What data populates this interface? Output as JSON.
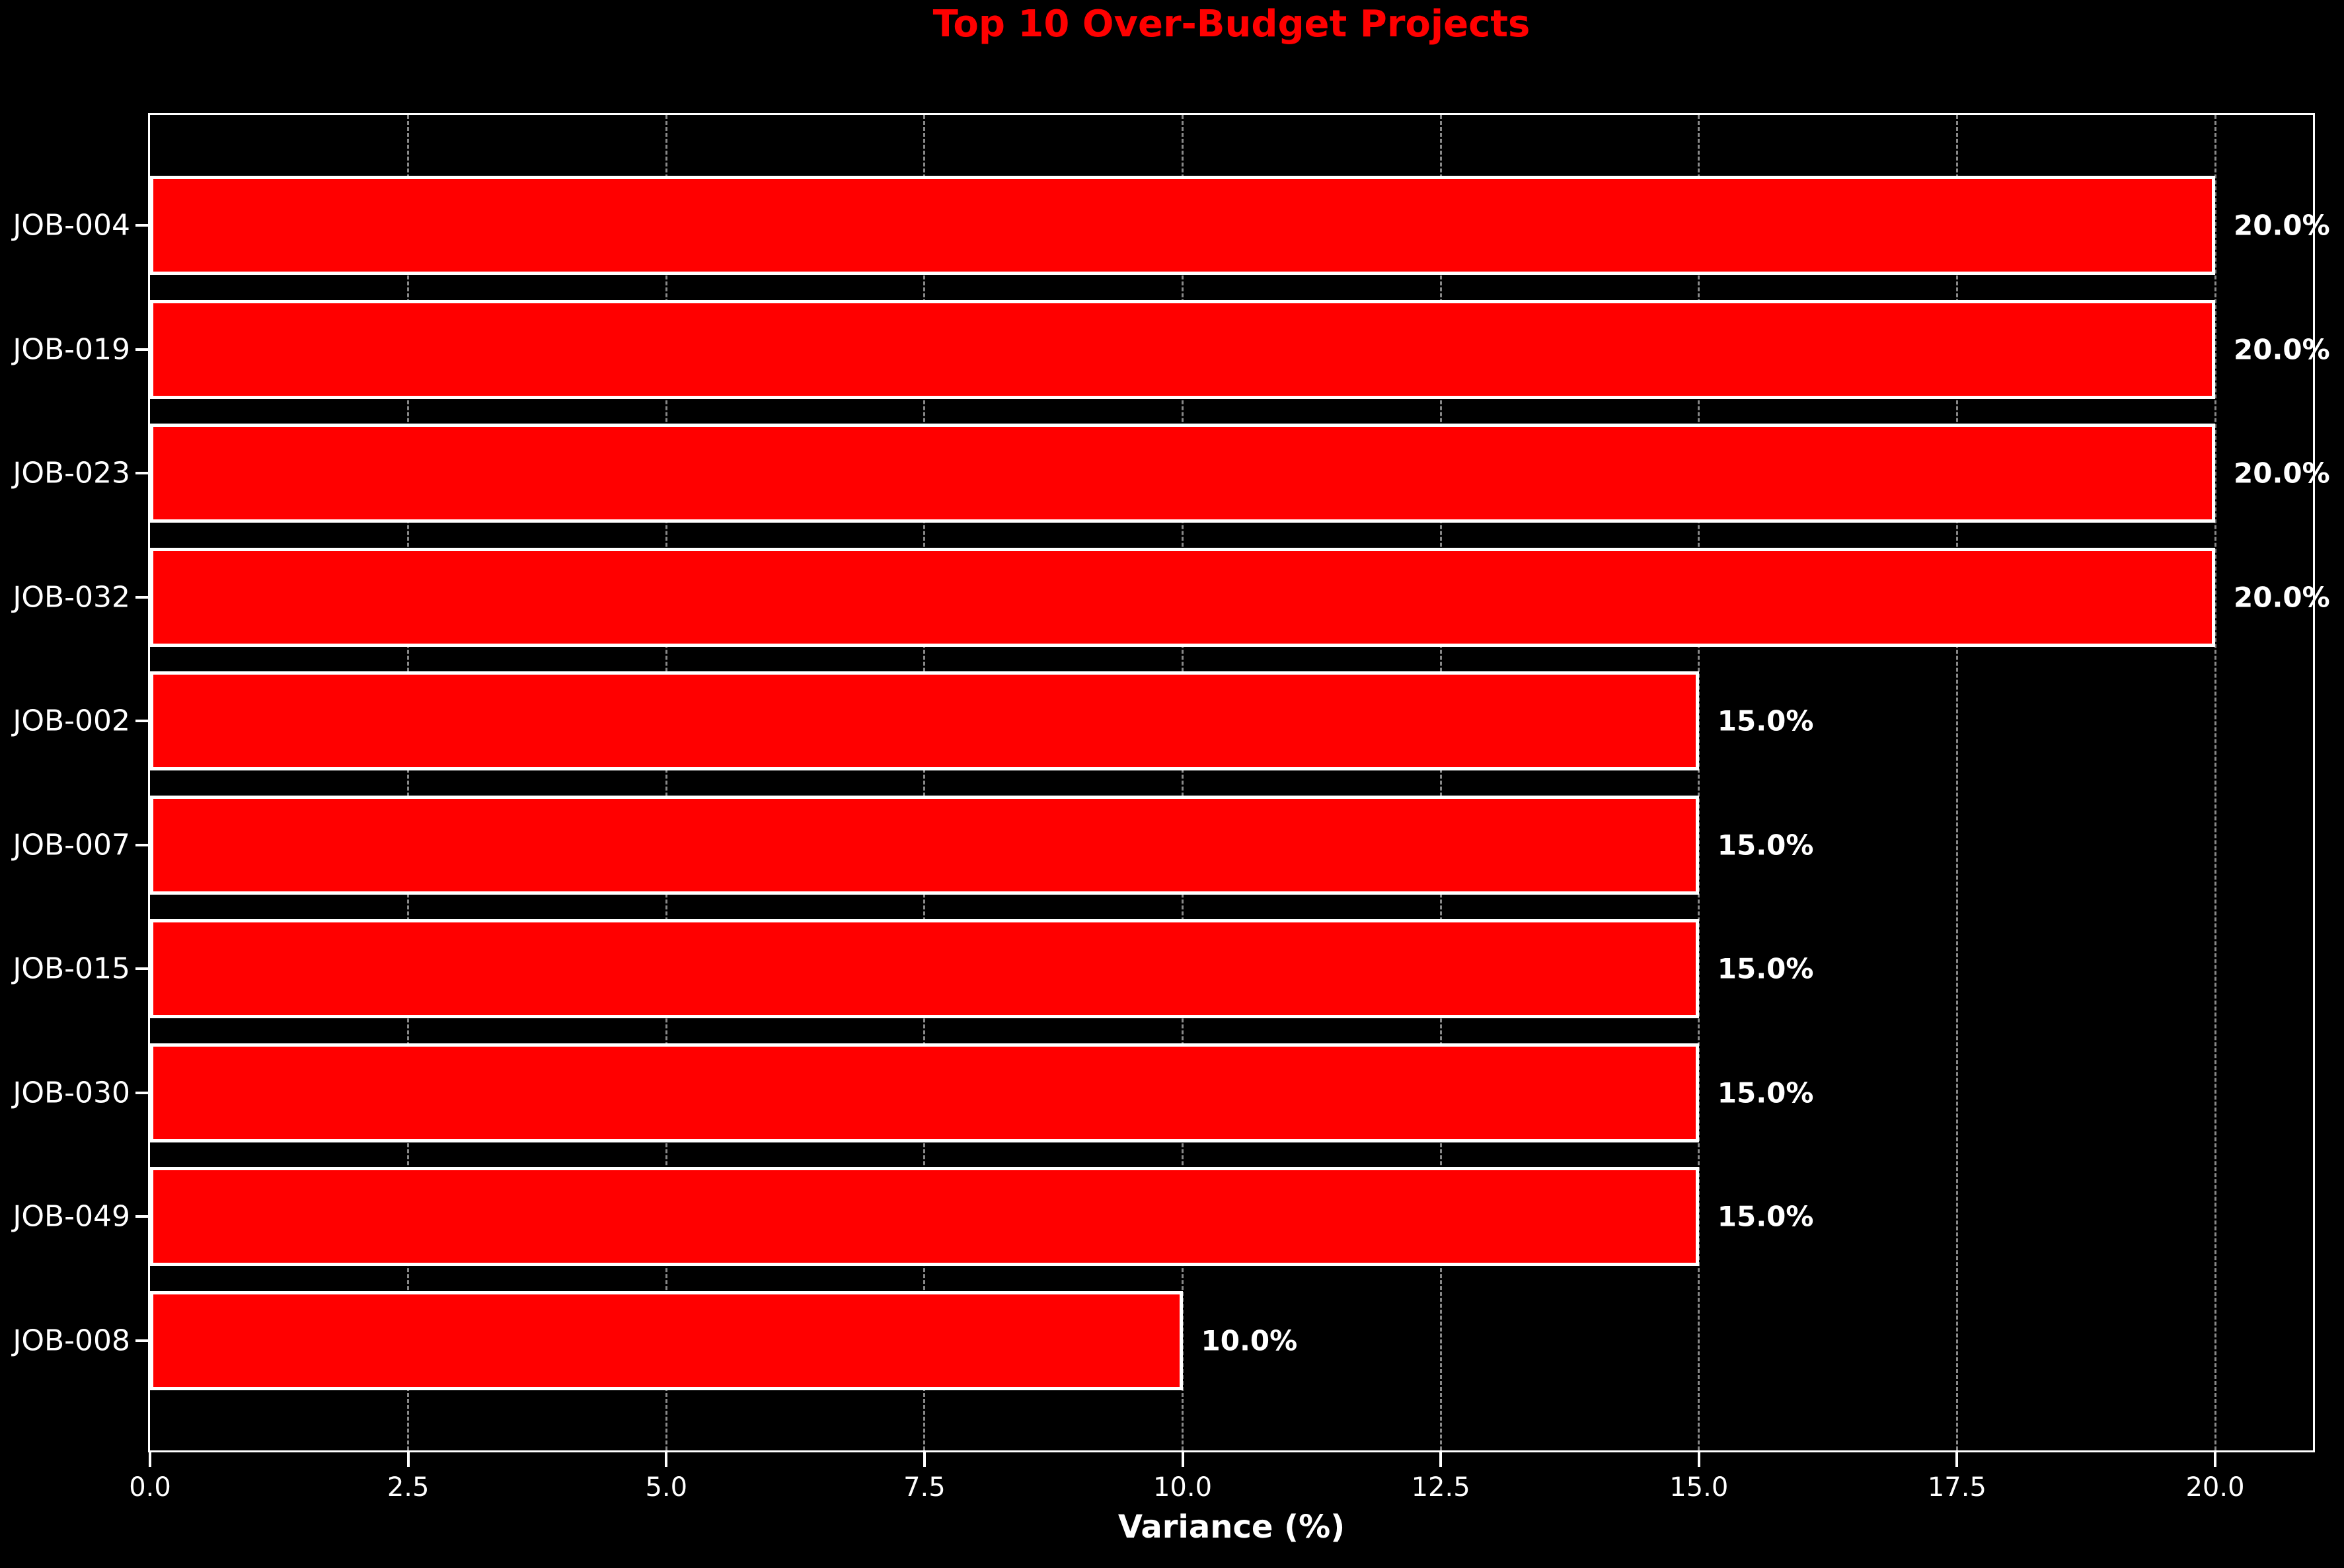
{
  "chart_data": {
    "type": "bar",
    "orientation": "horizontal",
    "title": "Top 10 Over-Budget Projects",
    "xlabel": "Variance (%)",
    "ylabel": "",
    "categories": [
      "JOB-004",
      "JOB-019",
      "JOB-023",
      "JOB-032",
      "JOB-002",
      "JOB-007",
      "JOB-015",
      "JOB-030",
      "JOB-049",
      "JOB-008"
    ],
    "values": [
      20.0,
      20.0,
      20.0,
      20.0,
      15.0,
      15.0,
      15.0,
      15.0,
      15.0,
      10.0
    ],
    "value_labels": [
      "20.0%",
      "20.0%",
      "20.0%",
      "20.0%",
      "15.0%",
      "15.0%",
      "15.0%",
      "15.0%",
      "15.0%",
      "10.0%"
    ],
    "x_ticks": [
      0.0,
      2.5,
      5.0,
      7.5,
      10.0,
      12.5,
      15.0,
      17.5,
      20.0
    ],
    "x_tick_labels": [
      "0.0",
      "2.5",
      "5.0",
      "7.5",
      "10.0",
      "12.5",
      "15.0",
      "17.5",
      "20.0"
    ],
    "xlim": [
      0,
      20.95
    ],
    "grid": true,
    "grid_style": "dashed",
    "legend": null,
    "colors": {
      "background": "#000000",
      "bar_fill": "#ff0000",
      "bar_edge": "#ffffff",
      "title": "#ff0000",
      "text": "#ffffff",
      "grid": "#888888",
      "spine": "#ffffff"
    }
  }
}
